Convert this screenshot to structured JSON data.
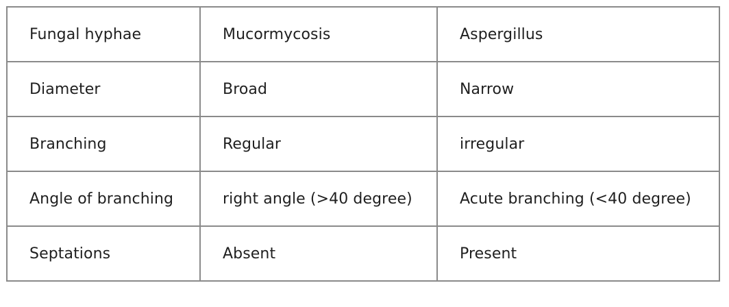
{
  "table": {
    "rows": [
      [
        "Fungal hyphae",
        "Mucormycosis",
        "Aspergillus"
      ],
      [
        "Diameter",
        "Broad",
        "Narrow"
      ],
      [
        "Branching",
        "Regular",
        "irregular"
      ],
      [
        "Angle of branching",
        "right angle (>40 degree)",
        "Acute branching (<40 degree)"
      ],
      [
        "Septations",
        "Absent",
        "Present"
      ]
    ]
  }
}
